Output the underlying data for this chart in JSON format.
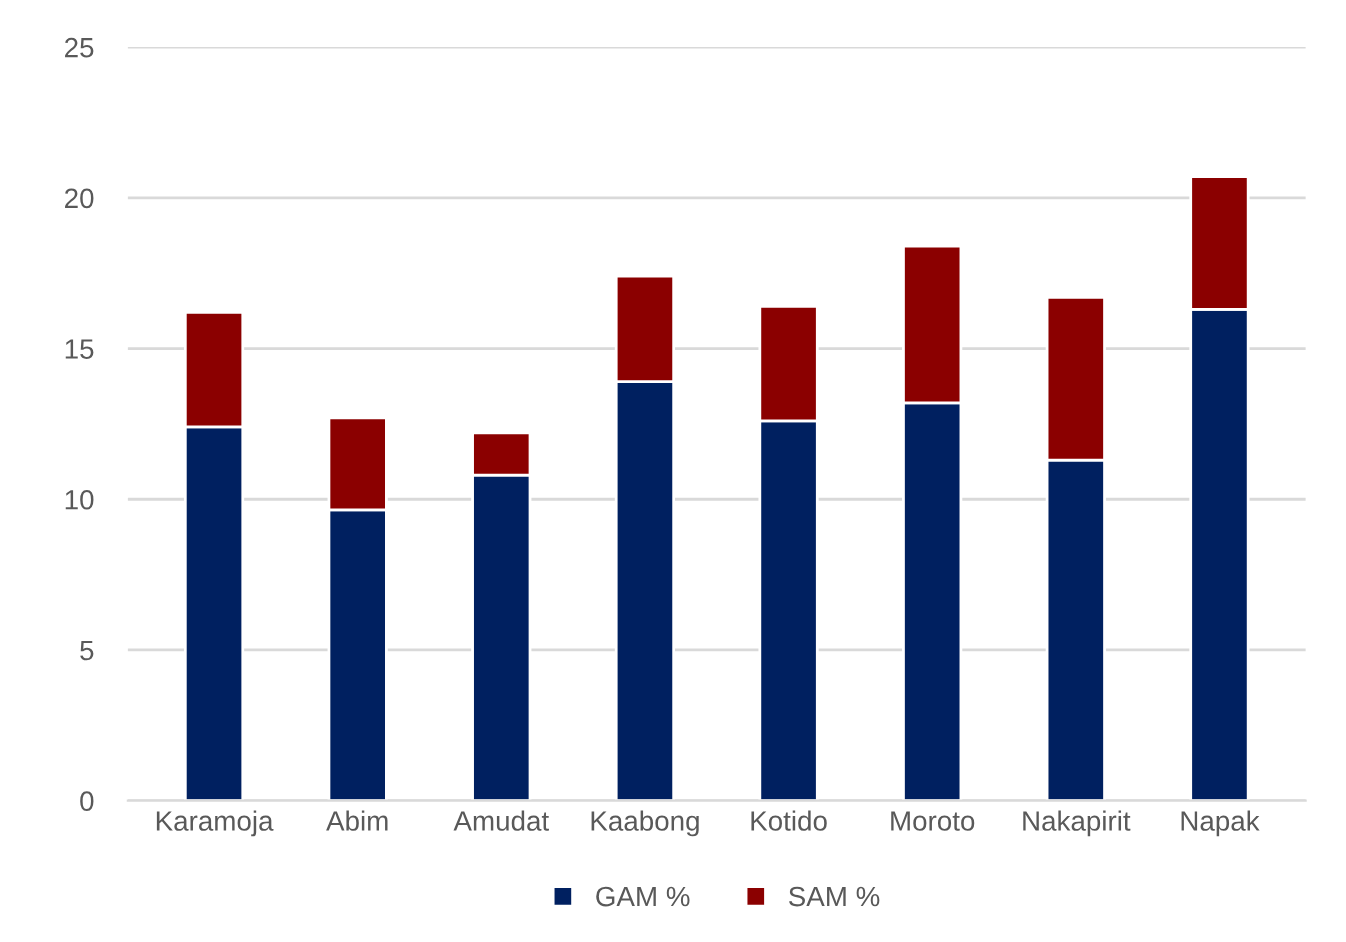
{
  "chart_data": {
    "type": "bar",
    "stacked": true,
    "categories": [
      "Karamoja",
      "Abim",
      "Amudat",
      "Kaabong",
      "Kotido",
      "Moroto",
      "Nakapirit",
      "Napak"
    ],
    "series": [
      {
        "name": "GAM %",
        "color": "#002060",
        "values": [
          12.4,
          9.65,
          10.8,
          13.9,
          12.6,
          13.2,
          11.3,
          16.3
        ]
      },
      {
        "name": "SAM %",
        "color": "#8b0000",
        "values": [
          3.8,
          3.05,
          1.4,
          3.5,
          3.8,
          5.2,
          5.4,
          4.4
        ]
      }
    ],
    "ylim": [
      0,
      25
    ],
    "yticks": [
      0,
      5,
      10,
      15,
      20,
      25
    ],
    "grid": "y",
    "legend": "bottom"
  }
}
